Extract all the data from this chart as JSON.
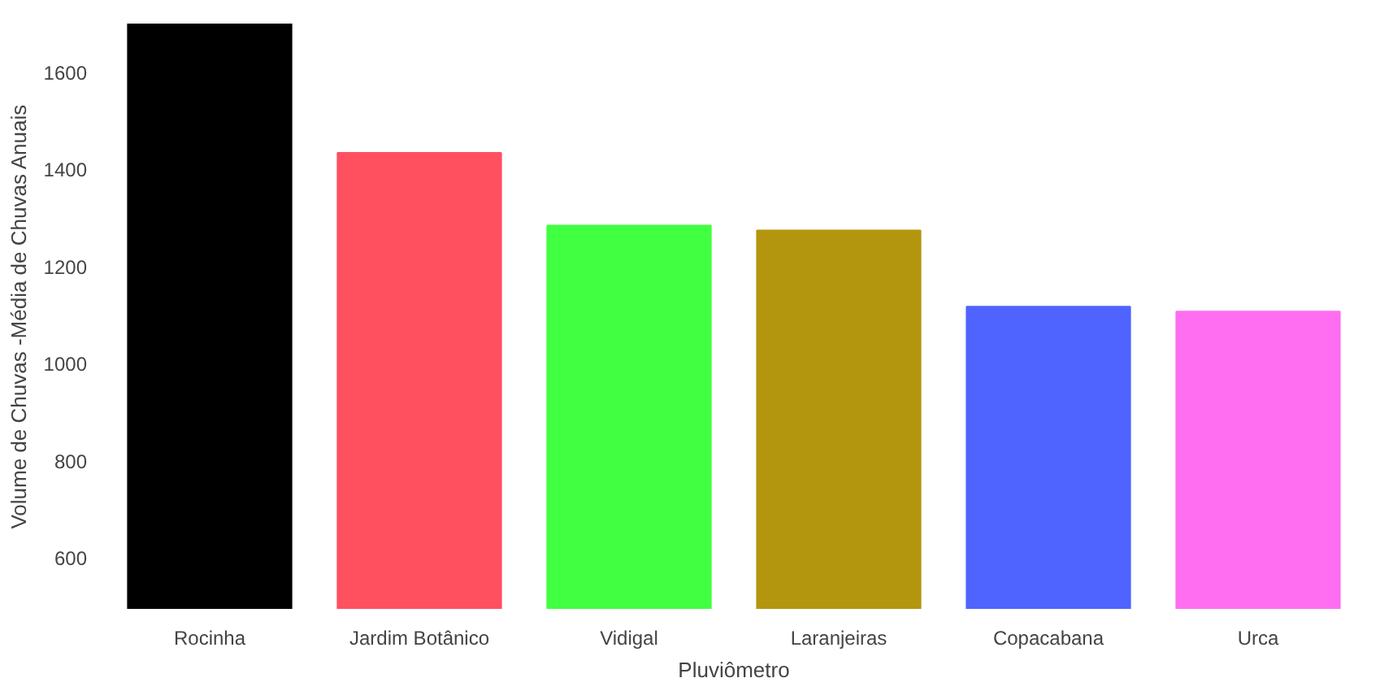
{
  "chart_data": {
    "type": "bar",
    "xlabel": "Pluviômetro",
    "ylabel": "Volume de Chuvas -Média de Chuvas Anuais",
    "categories": [
      "Rocinha",
      "Jardim Botânico",
      "Vidigal",
      "Laranjeiras",
      "Copacabana",
      "Urca"
    ],
    "values": [
      1700,
      1434,
      1284,
      1274,
      1117,
      1107
    ],
    "colors": [
      "#000000",
      "#ff505f",
      "#41ff41",
      "#b4960e",
      "#4f64ff",
      "#ff6ef0"
    ],
    "ylim": [
      495,
      1700
    ],
    "yticks": [
      600,
      800,
      1000,
      1200,
      1400,
      1600
    ],
    "grid": false
  }
}
